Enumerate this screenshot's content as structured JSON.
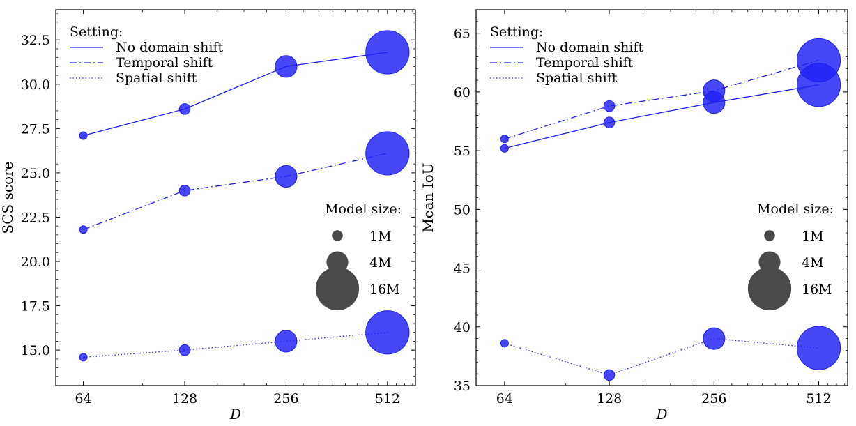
{
  "chart_data": [
    {
      "type": "line",
      "xlabel": "D",
      "ylabel": "SCS score",
      "x_scale": "log2",
      "x_ticks": [
        64,
        128,
        256,
        512
      ],
      "x_tick_labels": [
        "64",
        "128",
        "256",
        "512"
      ],
      "xlim": [
        53,
        620
      ],
      "ylim": [
        13.0,
        34.2
      ],
      "y_ticks": [
        15.0,
        17.5,
        20.0,
        22.5,
        25.0,
        27.5,
        30.0,
        32.5
      ],
      "y_tick_labels": [
        "15.0",
        "17.5",
        "20.0",
        "22.5",
        "25.0",
        "27.5",
        "30.0",
        "32.5"
      ],
      "grid": false,
      "series": [
        {
          "name": "No domain shift",
          "linestyle": "solid",
          "x": [
            64,
            128,
            256,
            512
          ],
          "values": [
            27.1,
            28.6,
            31.0,
            31.8
          ]
        },
        {
          "name": "Temporal shift",
          "linestyle": "dashdot",
          "x": [
            64,
            128,
            256,
            512
          ],
          "values": [
            21.8,
            24.0,
            24.8,
            26.1
          ]
        },
        {
          "name": "Spatial shift",
          "linestyle": "dotted",
          "x": [
            64,
            128,
            256,
            512
          ],
          "values": [
            14.6,
            15.0,
            15.5,
            16.0
          ]
        }
      ],
      "marker_size_model_params": [
        0.5,
        1,
        4,
        16
      ],
      "legend": {
        "title": "Setting:",
        "position": "top-left"
      },
      "size_legend": {
        "title": "Model size:",
        "position": "right",
        "entries": [
          {
            "label": "1M",
            "model_params": 1
          },
          {
            "label": "4M",
            "model_params": 4
          },
          {
            "label": "16M",
            "model_params": 16
          }
        ]
      }
    },
    {
      "type": "line",
      "xlabel": "D",
      "ylabel": "Mean IoU",
      "x_scale": "log2",
      "x_ticks": [
        64,
        128,
        256,
        512
      ],
      "x_tick_labels": [
        "64",
        "128",
        "256",
        "512"
      ],
      "xlim": [
        53,
        620
      ],
      "ylim": [
        35.0,
        67.0
      ],
      "y_ticks": [
        35,
        40,
        45,
        50,
        55,
        60,
        65
      ],
      "y_tick_labels": [
        "35",
        "40",
        "45",
        "50",
        "55",
        "60",
        "65"
      ],
      "grid": false,
      "series": [
        {
          "name": "No domain shift",
          "linestyle": "solid",
          "x": [
            64,
            128,
            256,
            512
          ],
          "values": [
            55.2,
            57.4,
            59.1,
            60.6
          ]
        },
        {
          "name": "Temporal shift",
          "linestyle": "dashdot",
          "x": [
            64,
            128,
            256,
            512
          ],
          "values": [
            56.0,
            58.8,
            60.1,
            62.7
          ]
        },
        {
          "name": "Spatial shift",
          "linestyle": "dotted",
          "x": [
            64,
            128,
            256,
            512
          ],
          "values": [
            38.6,
            35.9,
            39.0,
            38.2
          ]
        }
      ],
      "marker_size_model_params": [
        0.5,
        1,
        4,
        16
      ],
      "legend": {
        "title": "Setting:",
        "position": "top-left"
      },
      "size_legend": {
        "title": "Model size:",
        "position": "right",
        "entries": [
          {
            "label": "1M",
            "model_params": 1
          },
          {
            "label": "4M",
            "model_params": 4
          },
          {
            "label": "16M",
            "model_params": 16
          }
        ]
      }
    }
  ],
  "colors": {
    "series": "#2020ee",
    "marker_fill": "#1f1ff5",
    "marker_alpha": 0.82,
    "size_legend": "#4a4a4a",
    "axes": "#000000"
  }
}
